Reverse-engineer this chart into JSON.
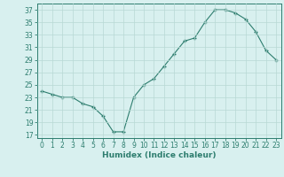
{
  "x": [
    0,
    1,
    2,
    3,
    4,
    5,
    6,
    7,
    8,
    9,
    10,
    11,
    12,
    13,
    14,
    15,
    16,
    17,
    18,
    19,
    20,
    21,
    22,
    23
  ],
  "y": [
    24,
    23.5,
    23,
    23,
    22,
    21.5,
    20,
    17.5,
    17.5,
    23,
    25,
    26,
    28,
    30,
    32,
    32.5,
    35,
    37,
    37,
    36.5,
    35.5,
    33.5,
    30.5,
    29
  ],
  "line_color": "#2d7d6e",
  "marker": "+",
  "marker_size": 3,
  "marker_linewidth": 1.0,
  "background_color": "#d8f0ef",
  "grid_color": "#b8d8d4",
  "xlabel": "Humidex (Indice chaleur)",
  "xlim": [
    -0.5,
    23.5
  ],
  "ylim": [
    16.5,
    38
  ],
  "yticks": [
    17,
    19,
    21,
    23,
    25,
    27,
    29,
    31,
    33,
    35,
    37
  ],
  "xticks": [
    0,
    1,
    2,
    3,
    4,
    5,
    6,
    7,
    8,
    9,
    10,
    11,
    12,
    13,
    14,
    15,
    16,
    17,
    18,
    19,
    20,
    21,
    22,
    23
  ],
  "tick_fontsize": 5.5,
  "xlabel_fontsize": 6.5,
  "linewidth": 0.8
}
